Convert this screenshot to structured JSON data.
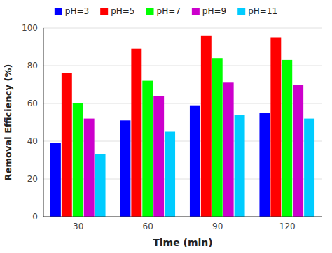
{
  "chart_data": {
    "type": "bar",
    "categories": [
      "30",
      "60",
      "90",
      "120"
    ],
    "series": [
      {
        "name": "pH=3",
        "color": "#0000FF",
        "values": [
          39,
          51,
          59,
          55
        ]
      },
      {
        "name": "pH=5",
        "color": "#FF0000",
        "values": [
          76,
          89,
          96,
          95
        ]
      },
      {
        "name": "pH=7",
        "color": "#00FF00",
        "values": [
          60,
          72,
          84,
          83
        ]
      },
      {
        "name": "pH=9",
        "color": "#CC00CC",
        "values": [
          52,
          64,
          71,
          70
        ]
      },
      {
        "name": "pH=11",
        "color": "#00CCFF",
        "values": [
          33,
          45,
          54,
          52
        ]
      }
    ],
    "x_label": "Time (min)",
    "y_label": "Removal Efficiency (%)",
    "ylim": [
      0,
      100
    ],
    "yticks": [
      0,
      20,
      40,
      60,
      80,
      100
    ],
    "grid": true,
    "legend": "top"
  }
}
